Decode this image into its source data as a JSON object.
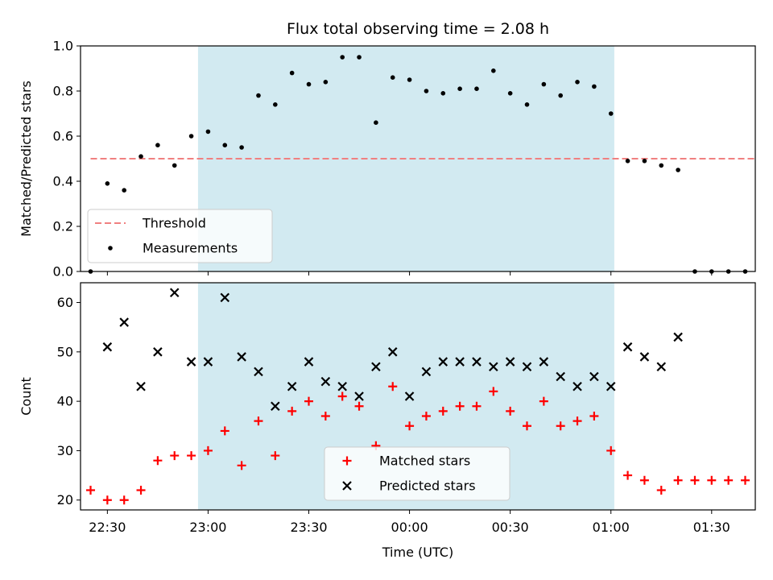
{
  "chart_data": {
    "type": "scatter",
    "title": "Flux total observing time = 2.08 h",
    "xlabel": "Time (UTC)",
    "x_ticks": [
      "22:30",
      "23:00",
      "23:30",
      "00:00",
      "00:30",
      "01:00",
      "01:30"
    ],
    "observing_window": {
      "start": "22:57",
      "end": "01:01",
      "color": "#add8e6"
    },
    "panels": [
      {
        "id": "ratio",
        "ylabel": "Matched/Predicted stars",
        "ylim": [
          0.0,
          1.0
        ],
        "y_ticks": [
          "0.0",
          "0.2",
          "0.4",
          "0.6",
          "0.8",
          "1.0"
        ],
        "legend": {
          "placement": "lower-left"
        },
        "series": [
          {
            "name": "Threshold",
            "kind": "dashed-line",
            "color": "#f08080",
            "x": [
              "22:25",
              "01:43"
            ],
            "y": [
              0.5,
              0.5
            ]
          },
          {
            "name": "Measurements",
            "kind": "dot",
            "color": "#000000",
            "x": [
              "22:25",
              "22:30",
              "22:35",
              "22:40",
              "22:45",
              "22:50",
              "22:55",
              "23:00",
              "23:05",
              "23:10",
              "23:15",
              "23:20",
              "23:25",
              "23:30",
              "23:35",
              "23:40",
              "23:45",
              "23:50",
              "23:55",
              "00:00",
              "00:05",
              "00:10",
              "00:15",
              "00:20",
              "00:25",
              "00:30",
              "00:35",
              "00:40",
              "00:45",
              "00:50",
              "00:55",
              "01:00",
              "01:05",
              "01:10",
              "01:15",
              "01:20",
              "01:25",
              "01:30",
              "01:35",
              "01:40"
            ],
            "y": [
              0.0,
              0.39,
              0.36,
              0.51,
              0.56,
              0.47,
              0.6,
              0.62,
              0.56,
              0.55,
              0.78,
              0.74,
              0.88,
              0.83,
              0.84,
              0.95,
              0.95,
              0.66,
              0.86,
              0.85,
              0.8,
              0.79,
              0.81,
              0.81,
              0.89,
              0.79,
              0.74,
              0.83,
              0.78,
              0.84,
              0.82,
              0.7,
              0.49,
              0.49,
              0.47,
              0.45,
              0.0,
              0.0,
              0.0,
              0.0
            ]
          }
        ]
      },
      {
        "id": "count",
        "ylabel": "Count",
        "ylim": [
          18,
          64
        ],
        "y_ticks": [
          "20",
          "30",
          "40",
          "50",
          "60"
        ],
        "legend": {
          "placement": "lower-center"
        },
        "series": [
          {
            "name": "Matched stars",
            "kind": "plus",
            "color": "#ff0000",
            "x": [
              "22:25",
              "22:30",
              "22:35",
              "22:40",
              "22:45",
              "22:50",
              "22:55",
              "23:00",
              "23:05",
              "23:10",
              "23:15",
              "23:20",
              "23:25",
              "23:30",
              "23:35",
              "23:40",
              "23:45",
              "23:50",
              "23:55",
              "00:00",
              "00:05",
              "00:10",
              "00:15",
              "00:20",
              "00:25",
              "00:30",
              "00:35",
              "00:40",
              "00:45",
              "00:50",
              "00:55",
              "01:00",
              "01:05",
              "01:10",
              "01:15",
              "01:20",
              "01:25",
              "01:30",
              "01:35",
              "01:40"
            ],
            "y": [
              22,
              20,
              20,
              22,
              28,
              29,
              29,
              30,
              34,
              27,
              36,
              29,
              38,
              40,
              37,
              41,
              39,
              31,
              43,
              35,
              37,
              38,
              39,
              39,
              42,
              38,
              35,
              40,
              35,
              36,
              37,
              30,
              25,
              24,
              22,
              24,
              24,
              24,
              24,
              24
            ]
          },
          {
            "name": "Predicted stars",
            "kind": "cross",
            "color": "#000000",
            "x": [
              "22:30",
              "22:35",
              "22:40",
              "22:45",
              "22:50",
              "22:55",
              "23:00",
              "23:05",
              "23:10",
              "23:15",
              "23:20",
              "23:25",
              "23:30",
              "23:35",
              "23:40",
              "23:45",
              "23:50",
              "23:55",
              "00:00",
              "00:05",
              "00:10",
              "00:15",
              "00:20",
              "00:25",
              "00:30",
              "00:35",
              "00:40",
              "00:45",
              "00:50",
              "00:55",
              "01:00",
              "01:05",
              "01:10",
              "01:15",
              "01:20"
            ],
            "y": [
              51,
              56,
              43,
              50,
              62,
              48,
              48,
              61,
              49,
              46,
              39,
              43,
              48,
              44,
              43,
              41,
              47,
              50,
              41,
              46,
              48,
              48,
              48,
              47,
              48,
              47,
              48,
              45,
              43,
              45,
              43,
              51,
              49,
              47,
              53
            ]
          }
        ]
      }
    ]
  }
}
